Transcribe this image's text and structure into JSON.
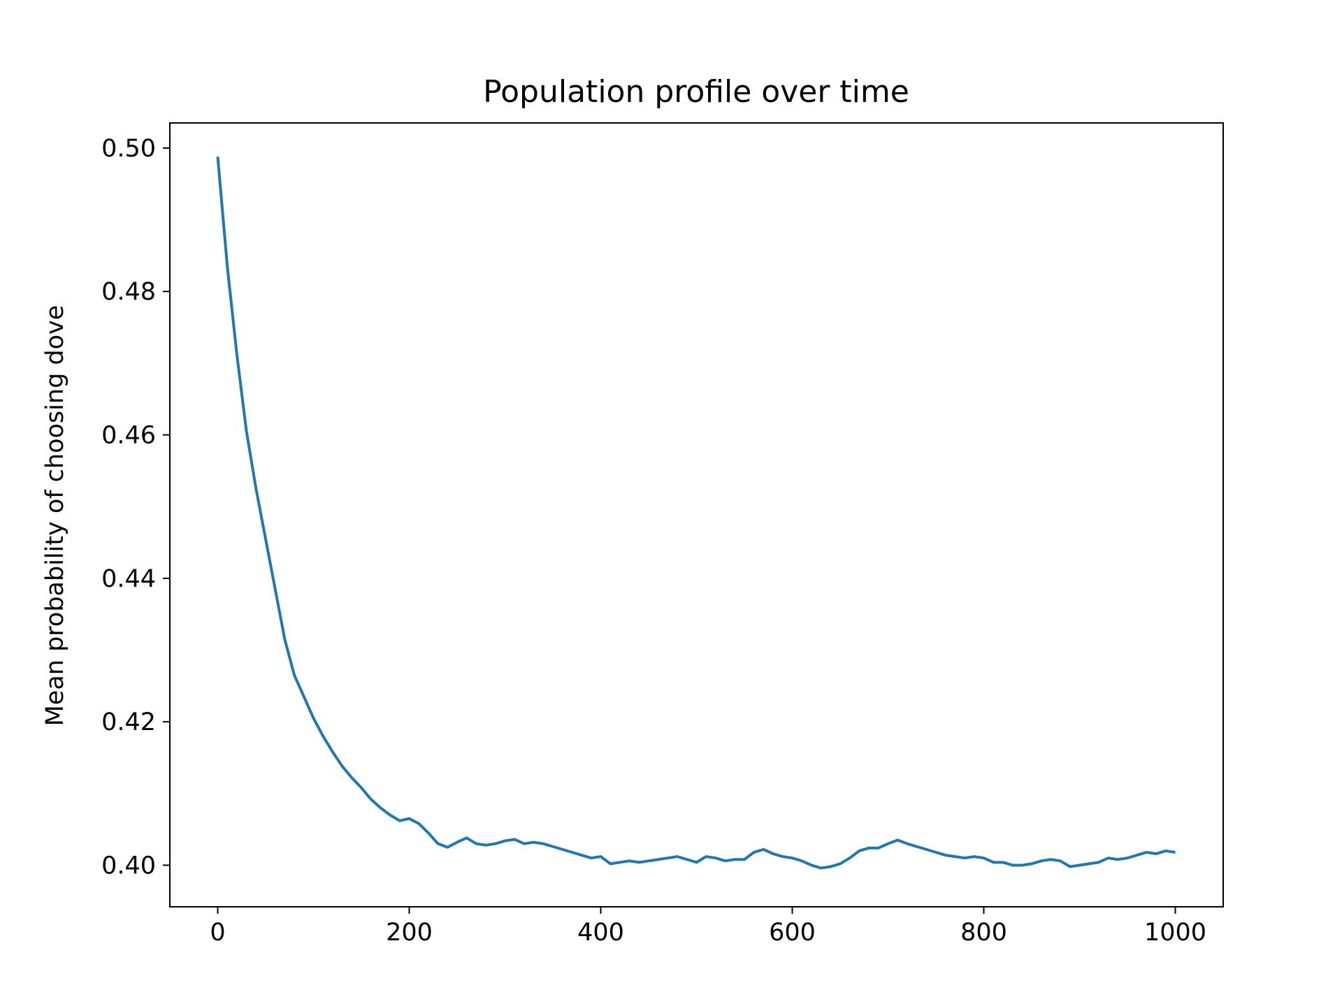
{
  "chart_data": {
    "type": "line",
    "title": "Population profile over time",
    "xlabel": "",
    "ylabel": "Mean probability of choosing dove",
    "xlim": [
      -50,
      1050
    ],
    "ylim": [
      0.3942,
      0.5035
    ],
    "xticks": [
      0,
      200,
      400,
      600,
      800,
      1000
    ],
    "xtick_labels": [
      "0",
      "200",
      "400",
      "600",
      "800",
      "1000"
    ],
    "yticks": [
      0.4,
      0.42,
      0.44,
      0.46,
      0.48,
      0.5
    ],
    "ytick_labels": [
      "0.40",
      "0.42",
      "0.44",
      "0.46",
      "0.48",
      "0.50"
    ],
    "grid": false,
    "legend": "none",
    "series": [
      {
        "color": "#1f77b4",
        "x": [
          0,
          10,
          20,
          30,
          40,
          50,
          60,
          70,
          80,
          90,
          100,
          110,
          120,
          130,
          140,
          150,
          160,
          170,
          180,
          190,
          200,
          210,
          220,
          230,
          240,
          250,
          260,
          270,
          280,
          290,
          300,
          310,
          320,
          330,
          340,
          350,
          360,
          370,
          380,
          390,
          400,
          410,
          420,
          430,
          440,
          450,
          460,
          470,
          480,
          490,
          500,
          510,
          520,
          530,
          540,
          550,
          560,
          570,
          580,
          590,
          600,
          610,
          620,
          630,
          640,
          650,
          660,
          670,
          680,
          690,
          700,
          710,
          720,
          730,
          740,
          750,
          760,
          770,
          780,
          790,
          800,
          810,
          820,
          830,
          840,
          850,
          860,
          870,
          880,
          890,
          900,
          910,
          920,
          930,
          940,
          950,
          960,
          970,
          980,
          990,
          1000
        ],
        "y": [
          0.4988,
          0.4835,
          0.4712,
          0.4605,
          0.4525,
          0.4455,
          0.4385,
          0.4315,
          0.4265,
          0.4235,
          0.4205,
          0.418,
          0.4158,
          0.4138,
          0.4122,
          0.4108,
          0.4092,
          0.408,
          0.407,
          0.4062,
          0.4065,
          0.4058,
          0.4045,
          0.403,
          0.4025,
          0.4032,
          0.4038,
          0.403,
          0.4028,
          0.403,
          0.4034,
          0.4036,
          0.403,
          0.4032,
          0.403,
          0.4026,
          0.4022,
          0.4018,
          0.4014,
          0.401,
          0.4012,
          0.4002,
          0.4004,
          0.4006,
          0.4004,
          0.4006,
          0.4008,
          0.401,
          0.4012,
          0.4008,
          0.4004,
          0.4012,
          0.401,
          0.4006,
          0.4008,
          0.4008,
          0.4018,
          0.4022,
          0.4016,
          0.4012,
          0.401,
          0.4006,
          0.4,
          0.3996,
          0.3998,
          0.4002,
          0.401,
          0.402,
          0.4024,
          0.4024,
          0.403,
          0.4035,
          0.403,
          0.4026,
          0.4022,
          0.4018,
          0.4014,
          0.4012,
          0.401,
          0.4012,
          0.401,
          0.4004,
          0.4004,
          0.4,
          0.4,
          0.4002,
          0.4006,
          0.4008,
          0.4006,
          0.3998,
          0.4,
          0.4002,
          0.4004,
          0.401,
          0.4008,
          0.401,
          0.4014,
          0.4018,
          0.4016,
          0.402,
          0.4018
        ]
      }
    ]
  }
}
